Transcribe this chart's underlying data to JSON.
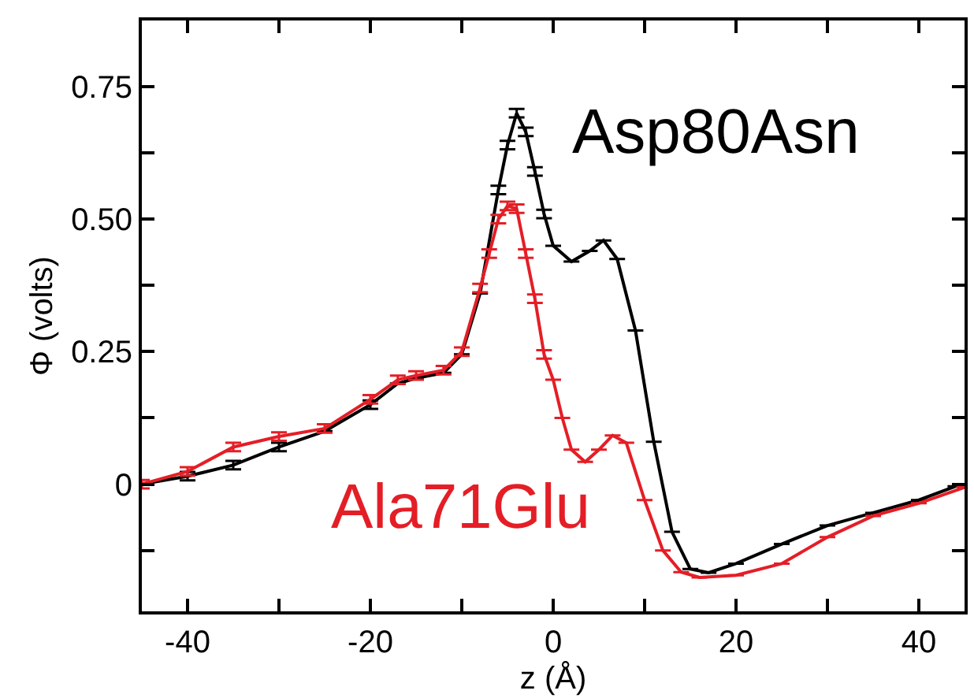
{
  "chart_data": {
    "type": "line",
    "xlabel": "z (Å)",
    "ylabel": "Φ (volts)",
    "xlim": [
      -45,
      45
    ],
    "ylim": [
      -0.24,
      0.875
    ],
    "xticks": [
      -40,
      {
        "value": -30,
        "label": null
      },
      -20,
      {
        "value": -10,
        "label": null
      },
      0,
      {
        "value": 10,
        "label": null
      },
      20,
      {
        "value": 30,
        "label": null
      },
      40
    ],
    "yticks": [
      {
        "value": -0.125,
        "label": null
      },
      0,
      {
        "value": 0.125,
        "label": null
      },
      0.25,
      {
        "value": 0.375,
        "label": null
      },
      {
        "value": 0.5,
        "label": "0.50"
      },
      {
        "value": 0.625,
        "label": null
      },
      0.75
    ],
    "legend": "right",
    "marker": "none",
    "line_style": "solid",
    "series": [
      {
        "name": "Asp80Asn",
        "color": "#000000",
        "x": [
          -45,
          -40,
          -35,
          -30,
          -25,
          -20,
          -17,
          -15,
          -12,
          -10,
          -8,
          -6,
          -5,
          -4,
          -3,
          -2,
          -1,
          0,
          2,
          4,
          5.5,
          7,
          9,
          11,
          13,
          15,
          17,
          20,
          25,
          30,
          35,
          40,
          44
        ],
        "values": [
          0.0,
          0.015,
          0.036,
          0.07,
          0.1,
          0.15,
          0.19,
          0.2,
          0.21,
          0.245,
          0.36,
          0.555,
          0.64,
          0.7,
          0.665,
          0.59,
          0.51,
          0.45,
          0.42,
          0.44,
          0.46,
          0.425,
          0.29,
          0.08,
          -0.09,
          -0.16,
          -0.167,
          -0.15,
          -0.113,
          -0.078,
          -0.054,
          -0.03,
          -0.004
        ],
        "errors": [
          null,
          0.008,
          0.008,
          0.008,
          null,
          0.008,
          null,
          null,
          null,
          null,
          null,
          0.008,
          0.008,
          0.008,
          0.008,
          0.008,
          0.008,
          null,
          null,
          null,
          null,
          null,
          null,
          null,
          null,
          null,
          null,
          null,
          null,
          null,
          null,
          null,
          null
        ]
      },
      {
        "name": "Ala71Glu",
        "color": "#e41e26",
        "x": [
          -45,
          -40,
          -35,
          -30,
          -25,
          -20,
          -17,
          -15,
          -12,
          -10,
          -8,
          -7,
          -6,
          -5,
          -4,
          -3,
          -2,
          -1,
          0,
          1,
          2,
          3.5,
          5,
          6.5,
          8,
          10,
          12,
          14,
          16,
          20,
          25,
          30,
          35,
          40,
          45
        ],
        "values": [
          0.0,
          0.024,
          0.07,
          0.09,
          0.105,
          0.16,
          0.197,
          0.205,
          0.215,
          0.25,
          0.37,
          0.435,
          0.5,
          0.525,
          0.52,
          0.435,
          0.35,
          0.245,
          0.197,
          0.125,
          0.065,
          0.042,
          0.065,
          0.092,
          0.078,
          -0.03,
          -0.125,
          -0.166,
          -0.176,
          -0.172,
          -0.15,
          -0.1,
          -0.06,
          -0.036,
          -0.006
        ],
        "errors": [
          0.008,
          0.008,
          0.008,
          0.008,
          0.008,
          0.008,
          0.008,
          0.008,
          0.008,
          0.008,
          0.008,
          0.008,
          0.008,
          0.008,
          0.008,
          0.008,
          0.008,
          0.008,
          null,
          null,
          null,
          null,
          null,
          null,
          null,
          null,
          null,
          null,
          null,
          null,
          null,
          null,
          null,
          null,
          null
        ]
      }
    ]
  }
}
